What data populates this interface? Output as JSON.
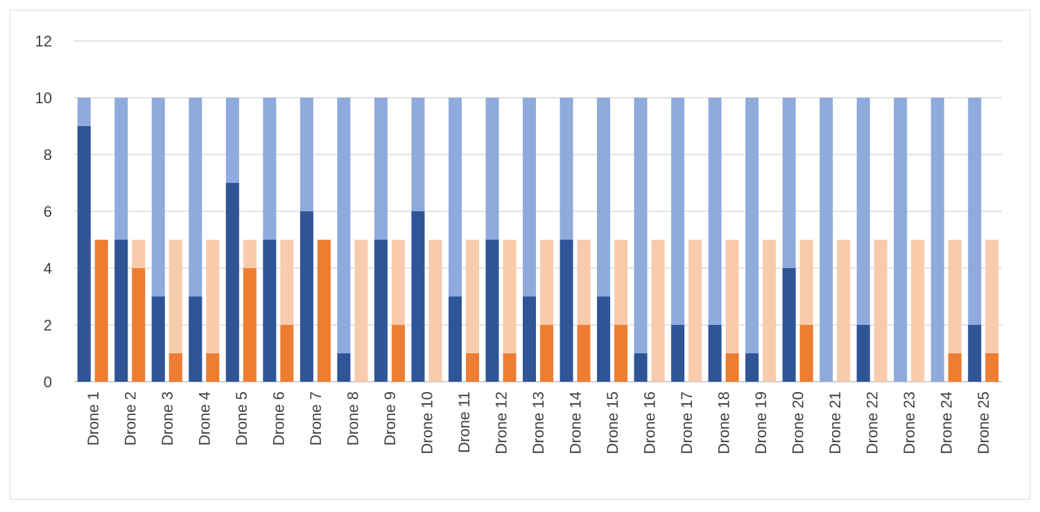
{
  "chart_data": {
    "type": "bar",
    "title": "",
    "xlabel": "",
    "ylabel": "",
    "ylim": [
      0,
      12
    ],
    "yticks": [
      0,
      2,
      4,
      6,
      8,
      10,
      12
    ],
    "grid": true,
    "legend": "none",
    "categories": [
      "Drone 1",
      "Drone 2",
      "Drone 3",
      "Drone 4",
      "Drone 5",
      "Drone 6",
      "Drone 7",
      "Drone 8",
      "Drone 9",
      "Drone 10",
      "Drone 11",
      "Drone 12",
      "Drone 13",
      "Drone 14",
      "Drone 15",
      "Drone 16",
      "Drone 17",
      "Drone 18",
      "Drone 19",
      "Drone 20",
      "Drone 21",
      "Drone 22",
      "Drone 23",
      "Drone 24",
      "Drone 25"
    ],
    "groups": [
      {
        "background_value": 10,
        "background_color": "#8faadc",
        "foreground_color": "#2f5597",
        "values": [
          9,
          5,
          3,
          3,
          7,
          5,
          6,
          1,
          5,
          6,
          3,
          5,
          3,
          5,
          3,
          1,
          2,
          2,
          1,
          4,
          0,
          2,
          0,
          0,
          2
        ]
      },
      {
        "background_value": 5,
        "background_color": "#f8cbad",
        "foreground_color": "#ed7d31",
        "values": [
          5,
          4,
          1,
          1,
          4,
          2,
          5,
          0,
          2,
          0,
          1,
          1,
          2,
          2,
          2,
          0,
          0,
          1,
          0,
          2,
          0,
          0,
          0,
          1,
          1
        ]
      }
    ]
  }
}
